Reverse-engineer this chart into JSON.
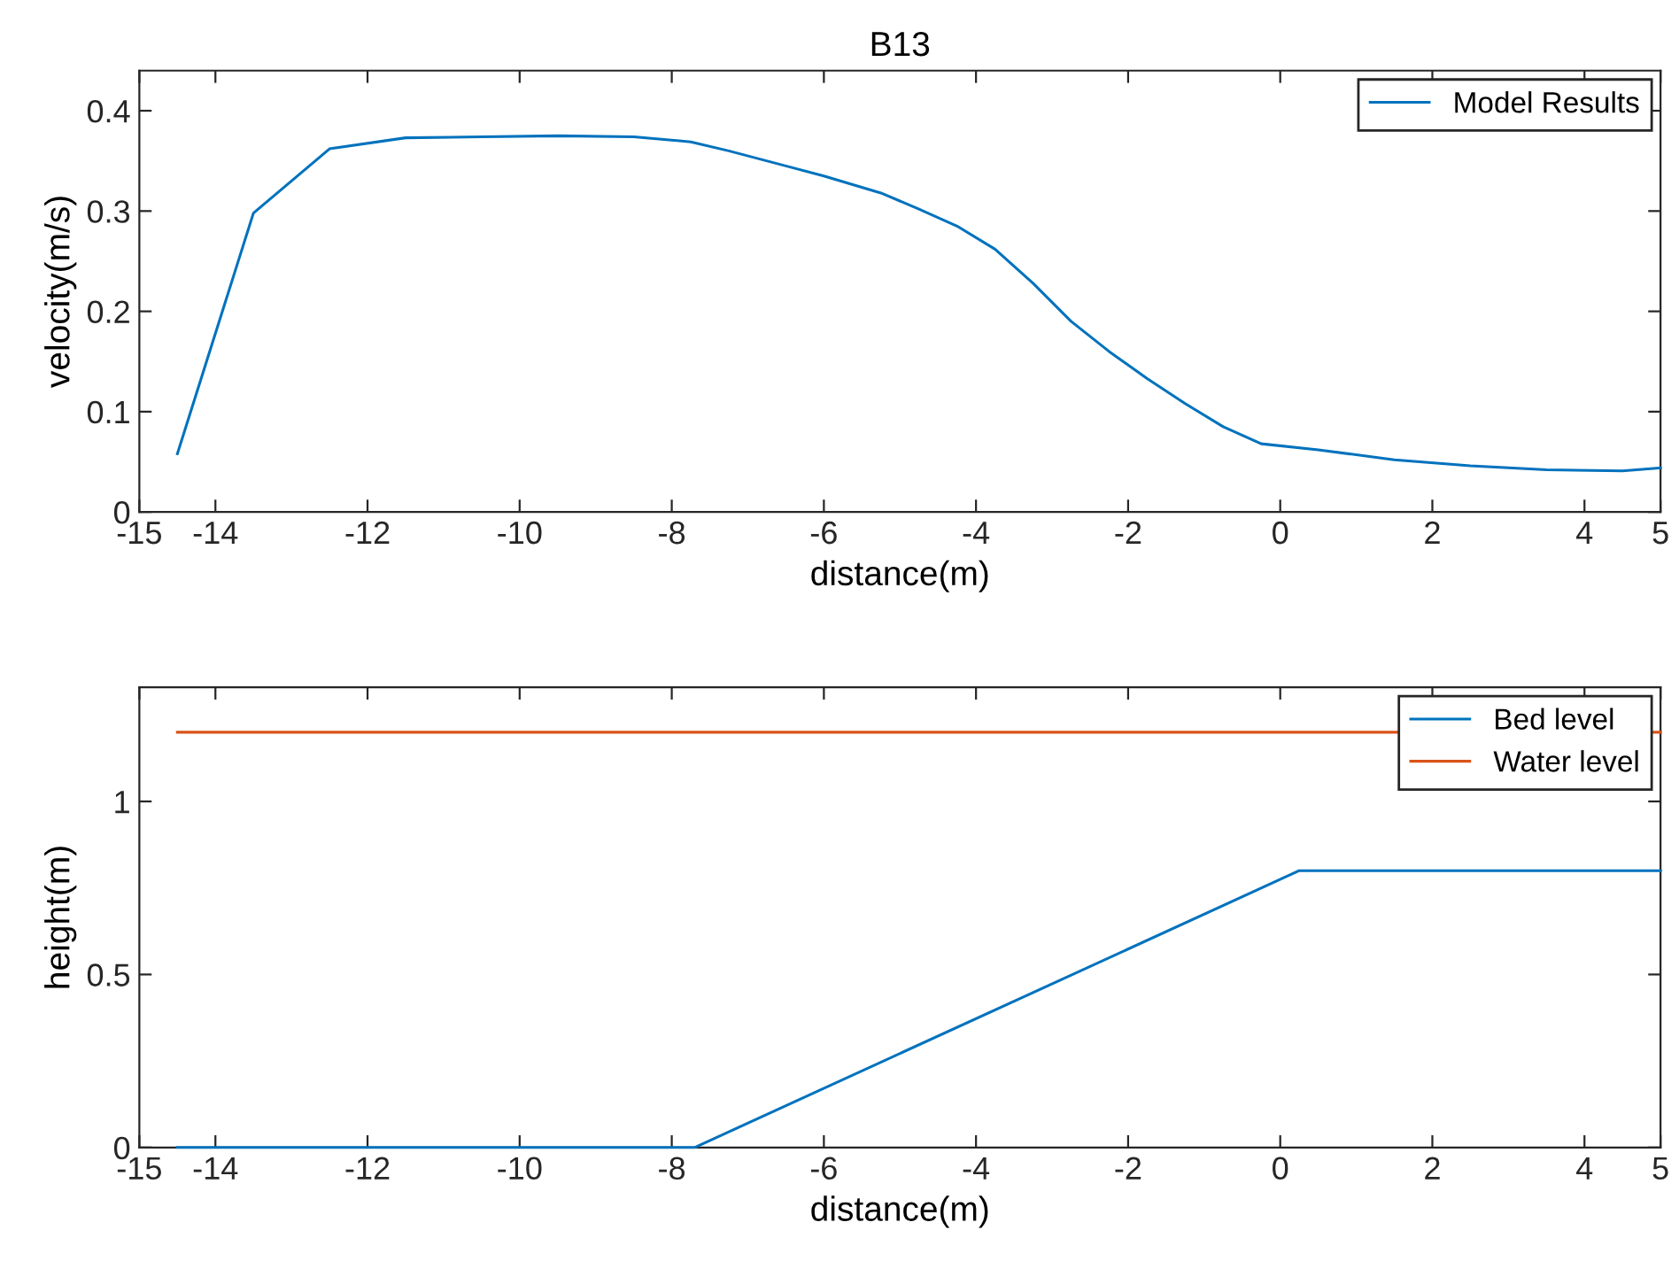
{
  "chart_data": [
    {
      "type": "line",
      "title": "B13",
      "xlabel": "distance(m)",
      "ylabel": "velocity(m/s)",
      "xlim": [
        -15,
        5
      ],
      "xticks": [
        -15,
        -14,
        -12,
        -10,
        -8,
        -6,
        -4,
        -2,
        0,
        2,
        4,
        5
      ],
      "ylim": [
        0,
        0.44
      ],
      "yticks": [
        0,
        0.1,
        0.2,
        0.3,
        0.4
      ],
      "legend": "top right",
      "grid": false,
      "series": [
        {
          "name": "Model Results",
          "color": "#0072bd",
          "x": [
            -14.5,
            -13.5,
            -12.5,
            -11.5,
            -10.5,
            -9.5,
            -8.5,
            -7.75,
            -7.25,
            -6.5,
            -6,
            -5.25,
            -4.75,
            -4.25,
            -3.75,
            -3.25,
            -2.75,
            -2.25,
            -1.75,
            -1.25,
            -0.75,
            -0.25,
            0.5,
            1.5,
            2.5,
            3.5,
            4.5,
            5
          ],
          "values": [
            0.058,
            0.298,
            0.362,
            0.373,
            0.374,
            0.375,
            0.374,
            0.369,
            0.36,
            0.345,
            0.335,
            0.318,
            0.302,
            0.285,
            0.262,
            0.228,
            0.19,
            0.16,
            0.133,
            0.108,
            0.085,
            0.068,
            0.062,
            0.052,
            0.046,
            0.042,
            0.041,
            0.044
          ]
        }
      ]
    },
    {
      "type": "line",
      "xlabel": "distance(m)",
      "ylabel": "height(m)",
      "xlim": [
        -15,
        5
      ],
      "xticks": [
        -15,
        -14,
        -12,
        -10,
        -8,
        -6,
        -4,
        -2,
        0,
        2,
        4,
        5
      ],
      "ylim": [
        0,
        1.33
      ],
      "yticks": [
        0,
        0.5,
        1
      ],
      "legend": "top right",
      "grid": false,
      "series": [
        {
          "name": "Bed level",
          "color": "#0072bd",
          "x": [
            -14.5,
            -7.7,
            0.25,
            5
          ],
          "values": [
            0,
            0,
            0.8,
            0.8
          ]
        },
        {
          "name": "Water level",
          "color": "#d95319",
          "x": [
            -14.5,
            5
          ],
          "values": [
            1.2,
            1.2
          ]
        }
      ]
    }
  ]
}
